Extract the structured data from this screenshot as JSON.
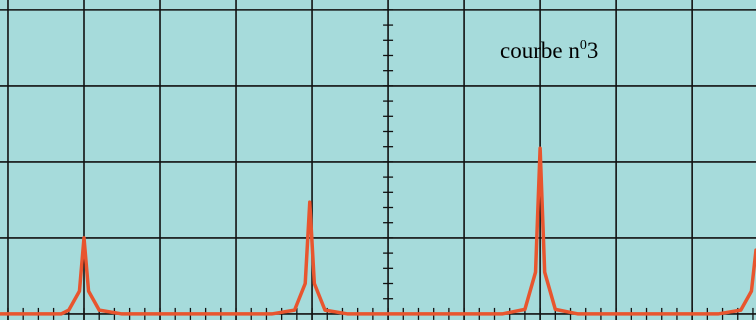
{
  "chart_data": {
    "type": "line",
    "title": "courbe  n⁰3",
    "x": [
      -0.1,
      0.7,
      0.8,
      0.94,
      1,
      1.06,
      1.2,
      1.5,
      3.47,
      3.77,
      3.91,
      3.97,
      4.03,
      4.17,
      4.47,
      6.5,
      6.8,
      6.94,
      7,
      7.06,
      7.2,
      7.5,
      9.34,
      9.64,
      9.78,
      9.84
    ],
    "series": [
      {
        "color": "#e8552e",
        "values": [
          0,
          0,
          0.05,
          0.3,
          1.0,
          0.3,
          0.05,
          0,
          0,
          0.05,
          0.4,
          1.47,
          0.4,
          0.05,
          0,
          0,
          0.06,
          0.55,
          2.18,
          0.55,
          0.06,
          0,
          0,
          0.05,
          0.3,
          0.84
        ]
      }
    ],
    "xlim": [
      -0.105,
      9.84
    ],
    "ylim": [
      -0.08,
      4.13
    ],
    "xticks": [
      0,
      1,
      2,
      3,
      4,
      5,
      6,
      7,
      8,
      9
    ],
    "yticks": [
      0,
      1,
      2,
      3,
      4
    ],
    "grid": true,
    "background": "#a6dbdb"
  }
}
